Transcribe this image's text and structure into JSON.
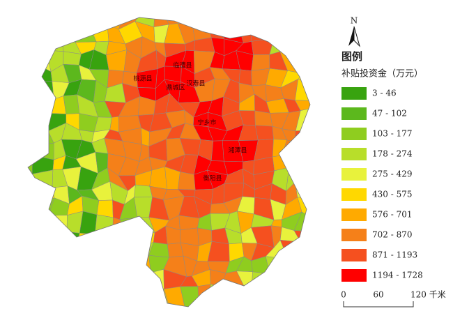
{
  "north": "N",
  "legend": {
    "title": "图例",
    "subtitle": "补贴投资金（万元）",
    "items": [
      {
        "label": "3 - 46",
        "color": "#38a30f"
      },
      {
        "label": "47 - 102",
        "color": "#5cb81d"
      },
      {
        "label": "103 - 177",
        "color": "#8fcd1f"
      },
      {
        "label": "178 - 274",
        "color": "#b8de2a"
      },
      {
        "label": "275 - 429",
        "color": "#e8f23c"
      },
      {
        "label": "430 - 575",
        "color": "#ffd800"
      },
      {
        "label": "576 - 701",
        "color": "#ffaa00"
      },
      {
        "label": "702 - 870",
        "color": "#f58019"
      },
      {
        "label": "871 - 1193",
        "color": "#f5501f"
      },
      {
        "label": "1194 - 1728",
        "color": "#ff0000"
      }
    ]
  },
  "scale_bar": {
    "ticks": [
      "0",
      "60",
      "120 千米"
    ]
  },
  "places": [
    "桃源县",
    "临澧县",
    "鼎城区",
    "汉寿县",
    "宁乡市",
    "湘潭县",
    "衡阳县"
  ]
}
